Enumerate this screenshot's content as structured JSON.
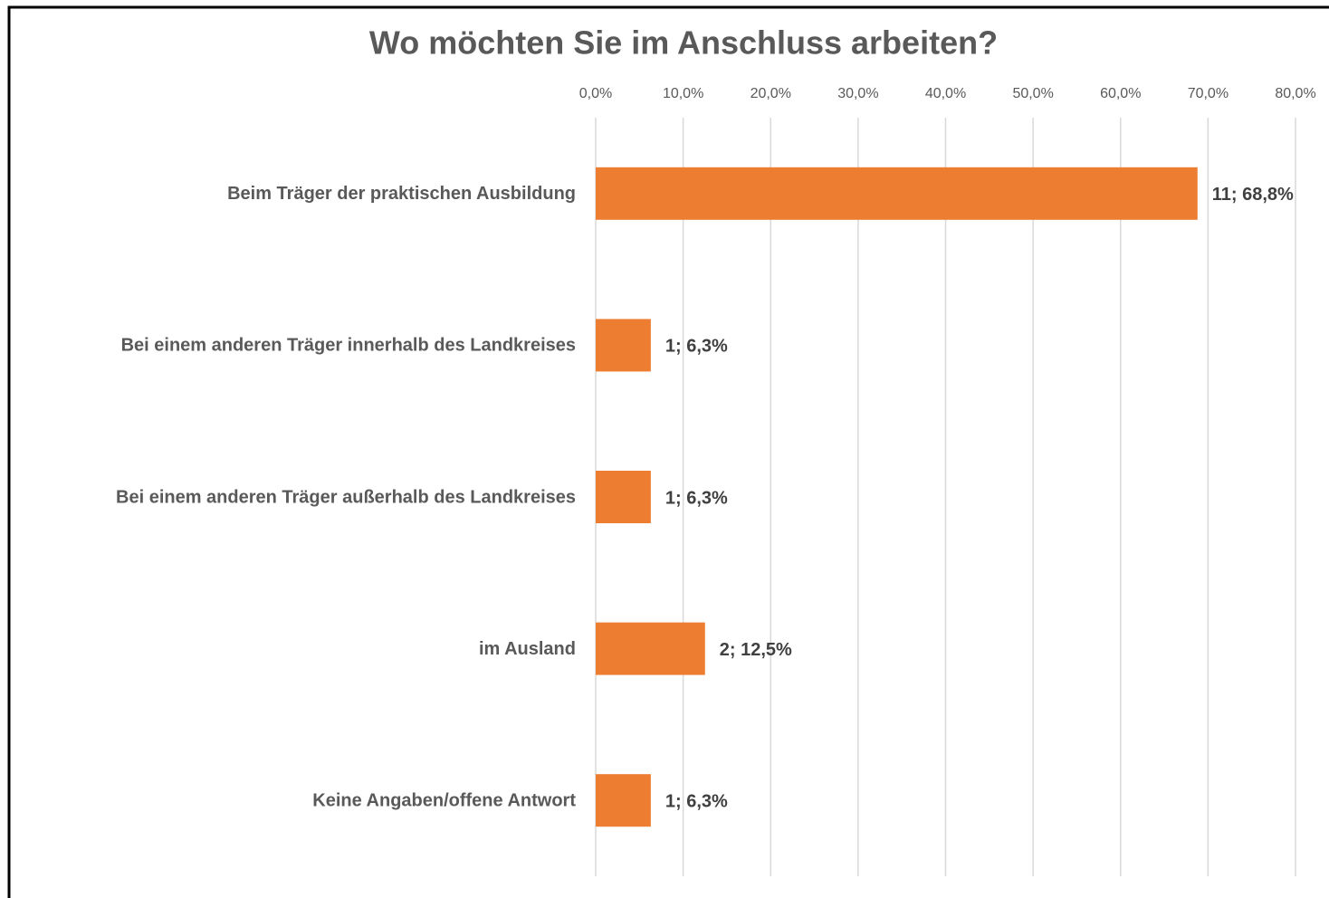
{
  "chart_data": {
    "type": "bar",
    "orientation": "horizontal",
    "title": "Wo möchten Sie im Anschluss arbeiten?",
    "categories": [
      "Beim Träger der praktischen Ausbildung",
      "Bei einem anderen Träger innerhalb des Landkreises",
      "Bei einem anderen Träger außerhalb des Landkreises",
      "im Ausland",
      "Keine Angaben/offene Antwort"
    ],
    "values": [
      68.8,
      6.3,
      6.3,
      12.5,
      6.3
    ],
    "value_labels": [
      "11; 68,8%",
      "1; 6,3%",
      "1; 6,3%",
      "2; 12,5%",
      "1; 6,3%"
    ],
    "color": "#ed7d31",
    "xlim": [
      0,
      80
    ],
    "xticks": [
      {
        "value": 0,
        "label": "0,0%"
      },
      {
        "value": 10,
        "label": "10,0%"
      },
      {
        "value": 20,
        "label": "20,0%"
      },
      {
        "value": 30,
        "label": "30,0%"
      },
      {
        "value": 40,
        "label": "40,0%"
      },
      {
        "value": 50,
        "label": "50,0%"
      },
      {
        "value": 60,
        "label": "60,0%"
      },
      {
        "value": 70,
        "label": "70,0%"
      },
      {
        "value": 80,
        "label": "80,0%"
      }
    ],
    "grid": true
  }
}
